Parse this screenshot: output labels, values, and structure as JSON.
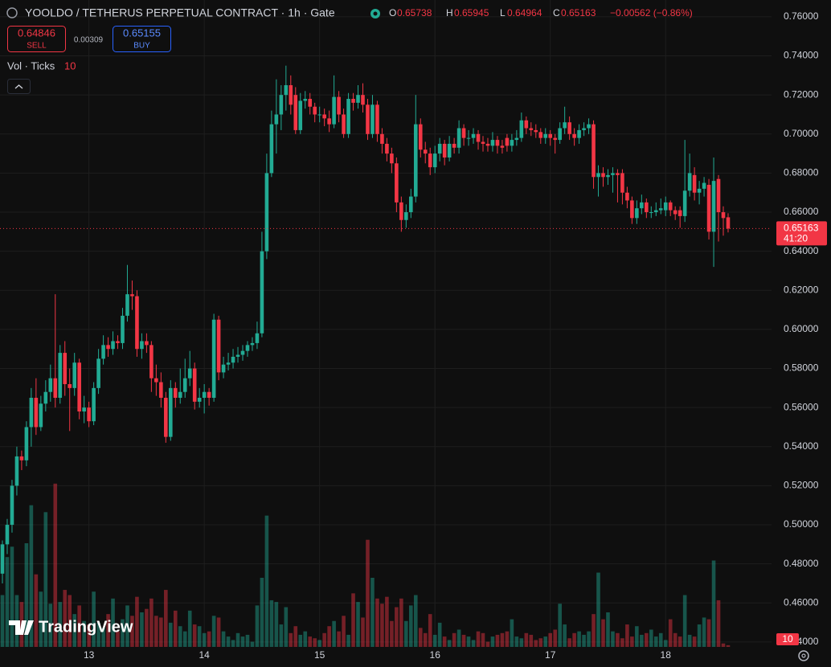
{
  "chart_data": {
    "type": "candlestick",
    "title": "YOOLDO / TETHERUS PERPETUAL CONTRACT · 1h · Gate",
    "ohlc_letters": [
      "O",
      "H",
      "L",
      "C"
    ],
    "change": "−0.00562 (−0.86%)",
    "sell_price": 0.64846,
    "sell_label": "SELL",
    "spread": 0.00309,
    "buy_price": 0.65155,
    "buy_label": "BUY",
    "volume_title": "Vol · Ticks",
    "countdown": "41:20",
    "watermark": "TradingView",
    "up_color": "#22ab94",
    "down_color": "#f23645",
    "grid": true,
    "ylim": [
      0.4375,
      0.7686
    ],
    "yticks": [
      {
        "value": 0.76,
        "label": "0.76000"
      },
      {
        "value": 0.74,
        "label": "0.74000"
      },
      {
        "value": 0.72,
        "label": "0.72000"
      },
      {
        "value": 0.7,
        "label": "0.70000"
      },
      {
        "value": 0.68,
        "label": "0.68000"
      },
      {
        "value": 0.66,
        "label": "0.66000"
      },
      {
        "value": 0.64,
        "label": "0.64000"
      },
      {
        "value": 0.62,
        "label": "0.62000"
      },
      {
        "value": 0.6,
        "label": "0.60000"
      },
      {
        "value": 0.58,
        "label": "0.58000"
      },
      {
        "value": 0.56,
        "label": "0.56000"
      },
      {
        "value": 0.54,
        "label": "0.54000"
      },
      {
        "value": 0.52,
        "label": "0.52000"
      },
      {
        "value": 0.5,
        "label": "0.50000"
      },
      {
        "value": 0.48,
        "label": "0.48000"
      },
      {
        "value": 0.46,
        "label": "0.46000"
      },
      {
        "value": 0.44,
        "label": "0.44000"
      }
    ],
    "xticks": [
      {
        "value": 18,
        "label": "13"
      },
      {
        "value": 42,
        "label": "14"
      },
      {
        "value": 66,
        "label": "15"
      },
      {
        "value": 90,
        "label": "16"
      },
      {
        "value": 114,
        "label": "17"
      },
      {
        "value": 138,
        "label": "18"
      }
    ],
    "vlim": [
      0,
      1000
    ],
    "open": [
      0.475,
      0.49,
      0.5,
      0.52,
      0.535,
      0.533,
      0.55,
      0.565,
      0.55,
      0.562,
      0.568,
      0.575,
      0.565,
      0.588,
      0.572,
      0.57,
      0.583,
      0.558,
      0.56,
      0.553,
      0.57,
      0.585,
      0.592,
      0.59,
      0.594,
      0.593,
      0.607,
      0.618,
      0.617,
      0.59,
      0.594,
      0.592,
      0.575,
      0.573,
      0.565,
      0.545,
      0.57,
      0.565,
      0.568,
      0.575,
      0.58,
      0.563,
      0.565,
      0.568,
      0.565,
      0.605,
      0.578,
      0.582,
      0.583,
      0.586,
      0.587,
      0.589,
      0.592,
      0.593,
      0.598,
      0.64,
      0.68,
      0.705,
      0.71,
      0.72,
      0.725,
      0.72,
      0.702,
      0.717,
      0.718,
      0.714,
      0.71,
      0.71,
      0.708,
      0.705,
      0.719,
      0.71,
      0.7,
      0.718,
      0.716,
      0.72,
      0.715,
      0.7,
      0.715,
      0.7,
      0.695,
      0.69,
      0.685,
      0.665,
      0.656,
      0.66,
      0.668,
      0.705,
      0.692,
      0.69,
      0.683,
      0.69,
      0.695,
      0.688,
      0.695,
      0.693,
      0.703,
      0.698,
      0.698,
      0.7,
      0.696,
      0.695,
      0.694,
      0.697,
      0.694,
      0.698,
      0.694,
      0.697,
      0.698,
      0.707,
      0.703,
      0.702,
      0.701,
      0.698,
      0.7,
      0.698,
      0.697,
      0.703,
      0.706,
      0.7,
      0.698,
      0.702,
      0.703,
      0.705,
      0.678,
      0.68,
      0.678,
      0.679,
      0.68,
      0.68,
      0.67,
      0.666,
      0.657,
      0.662,
      0.665,
      0.66,
      0.66,
      0.661,
      0.661,
      0.665,
      0.661,
      0.661,
      0.658,
      0.671,
      0.679,
      0.67,
      0.672,
      0.674,
      0.65,
      0.677,
      0.66,
      0.65738
    ],
    "high": [
      0.492,
      0.503,
      0.523,
      0.54,
      0.538,
      0.553,
      0.57,
      0.575,
      0.566,
      0.574,
      0.582,
      0.618,
      0.592,
      0.594,
      0.58,
      0.588,
      0.585,
      0.566,
      0.563,
      0.573,
      0.59,
      0.597,
      0.596,
      0.599,
      0.597,
      0.611,
      0.633,
      0.625,
      0.62,
      0.598,
      0.598,
      0.594,
      0.582,
      0.578,
      0.568,
      0.574,
      0.573,
      0.58,
      0.585,
      0.589,
      0.583,
      0.57,
      0.572,
      0.57,
      0.608,
      0.607,
      0.586,
      0.588,
      0.59,
      0.591,
      0.592,
      0.594,
      0.596,
      0.604,
      0.65,
      0.69,
      0.712,
      0.728,
      0.725,
      0.735,
      0.73,
      0.724,
      0.721,
      0.722,
      0.721,
      0.716,
      0.714,
      0.713,
      0.712,
      0.73,
      0.722,
      0.713,
      0.721,
      0.721,
      0.725,
      0.726,
      0.718,
      0.72,
      0.717,
      0.703,
      0.698,
      0.693,
      0.688,
      0.668,
      0.664,
      0.672,
      0.72,
      0.708,
      0.696,
      0.693,
      0.694,
      0.698,
      0.697,
      0.699,
      0.698,
      0.707,
      0.705,
      0.702,
      0.703,
      0.702,
      0.699,
      0.698,
      0.701,
      0.699,
      0.697,
      0.7,
      0.7,
      0.702,
      0.711,
      0.709,
      0.706,
      0.705,
      0.703,
      0.703,
      0.702,
      0.7,
      0.706,
      0.714,
      0.709,
      0.703,
      0.705,
      0.706,
      0.708,
      0.707,
      0.684,
      0.683,
      0.682,
      0.683,
      0.682,
      0.682,
      0.673,
      0.668,
      0.666,
      0.669,
      0.667,
      0.663,
      0.665,
      0.667,
      0.668,
      0.666,
      0.663,
      0.663,
      0.697,
      0.69,
      0.683,
      0.676,
      0.678,
      0.677,
      0.688,
      0.679,
      0.663,
      0.65945
    ],
    "low": [
      0.47,
      0.485,
      0.496,
      0.515,
      0.528,
      0.53,
      0.54,
      0.546,
      0.548,
      0.558,
      0.563,
      0.56,
      0.562,
      0.566,
      0.548,
      0.566,
      0.554,
      0.552,
      0.55,
      0.551,
      0.567,
      0.582,
      0.586,
      0.587,
      0.59,
      0.59,
      0.604,
      0.61,
      0.586,
      0.585,
      0.588,
      0.568,
      0.566,
      0.56,
      0.542,
      0.543,
      0.56,
      0.562,
      0.565,
      0.571,
      0.559,
      0.56,
      0.557,
      0.561,
      0.563,
      0.574,
      0.575,
      0.579,
      0.58,
      0.583,
      0.584,
      0.586,
      0.589,
      0.59,
      0.596,
      0.636,
      0.678,
      0.69,
      0.702,
      0.712,
      0.71,
      0.7,
      0.7,
      0.713,
      0.71,
      0.706,
      0.706,
      0.704,
      0.701,
      0.703,
      0.706,
      0.698,
      0.698,
      0.712,
      0.713,
      0.711,
      0.697,
      0.698,
      0.696,
      0.69,
      0.686,
      0.68,
      0.66,
      0.65,
      0.652,
      0.657,
      0.665,
      0.688,
      0.685,
      0.679,
      0.68,
      0.686,
      0.684,
      0.686,
      0.69,
      0.69,
      0.694,
      0.694,
      0.695,
      0.692,
      0.691,
      0.691,
      0.691,
      0.69,
      0.69,
      0.691,
      0.691,
      0.694,
      0.696,
      0.7,
      0.699,
      0.698,
      0.695,
      0.695,
      0.694,
      0.69,
      0.695,
      0.7,
      0.697,
      0.694,
      0.695,
      0.699,
      0.7,
      0.672,
      0.668,
      0.673,
      0.674,
      0.67,
      0.665,
      0.664,
      0.662,
      0.654,
      0.654,
      0.659,
      0.657,
      0.657,
      0.658,
      0.659,
      0.658,
      0.658,
      0.656,
      0.652,
      0.655,
      0.668,
      0.666,
      0.664,
      0.668,
      0.646,
      0.632,
      0.645,
      0.648,
      0.64964
    ],
    "close": [
      0.49,
      0.5,
      0.52,
      0.535,
      0.533,
      0.55,
      0.565,
      0.55,
      0.562,
      0.568,
      0.575,
      0.565,
      0.588,
      0.572,
      0.57,
      0.583,
      0.558,
      0.56,
      0.553,
      0.57,
      0.585,
      0.592,
      0.59,
      0.594,
      0.593,
      0.607,
      0.618,
      0.617,
      0.59,
      0.594,
      0.592,
      0.575,
      0.573,
      0.565,
      0.545,
      0.57,
      0.565,
      0.568,
      0.575,
      0.58,
      0.563,
      0.565,
      0.568,
      0.565,
      0.605,
      0.578,
      0.582,
      0.583,
      0.586,
      0.587,
      0.589,
      0.592,
      0.593,
      0.598,
      0.64,
      0.68,
      0.705,
      0.71,
      0.72,
      0.725,
      0.715,
      0.702,
      0.717,
      0.718,
      0.714,
      0.71,
      0.71,
      0.708,
      0.705,
      0.719,
      0.71,
      0.7,
      0.718,
      0.716,
      0.72,
      0.715,
      0.7,
      0.715,
      0.7,
      0.695,
      0.69,
      0.685,
      0.665,
      0.656,
      0.66,
      0.668,
      0.705,
      0.692,
      0.69,
      0.683,
      0.69,
      0.695,
      0.688,
      0.695,
      0.693,
      0.703,
      0.698,
      0.698,
      0.7,
      0.696,
      0.695,
      0.694,
      0.697,
      0.694,
      0.693,
      0.694,
      0.697,
      0.698,
      0.707,
      0.703,
      0.702,
      0.701,
      0.698,
      0.7,
      0.698,
      0.697,
      0.703,
      0.706,
      0.7,
      0.698,
      0.702,
      0.703,
      0.705,
      0.678,
      0.68,
      0.678,
      0.679,
      0.68,
      0.679,
      0.67,
      0.666,
      0.657,
      0.662,
      0.665,
      0.66,
      0.66,
      0.661,
      0.662,
      0.665,
      0.661,
      0.659,
      0.658,
      0.671,
      0.68,
      0.67,
      0.672,
      0.675,
      0.65,
      0.676,
      0.66,
      0.657,
      0.65163
    ],
    "volume": [
      300,
      520,
      580,
      300,
      260,
      600,
      820,
      420,
      320,
      780,
      250,
      945,
      260,
      330,
      300,
      190,
      240,
      150,
      130,
      320,
      140,
      110,
      190,
      280,
      90,
      160,
      240,
      180,
      290,
      200,
      220,
      280,
      180,
      170,
      330,
      140,
      210,
      120,
      90,
      210,
      130,
      120,
      80,
      90,
      180,
      170,
      90,
      60,
      40,
      80,
      60,
      70,
      30,
      240,
      400,
      760,
      270,
      260,
      130,
      230,
      80,
      120,
      70,
      90,
      60,
      50,
      40,
      80,
      120,
      150,
      90,
      180,
      70,
      310,
      260,
      170,
      620,
      400,
      280,
      250,
      290,
      150,
      230,
      280,
      150,
      240,
      300,
      110,
      80,
      190,
      70,
      140,
      60,
      40,
      80,
      100,
      70,
      60,
      40,
      90,
      80,
      30,
      60,
      70,
      80,
      90,
      160,
      60,
      50,
      80,
      70,
      40,
      50,
      60,
      80,
      100,
      250,
      130,
      50,
      80,
      90,
      70,
      90,
      190,
      430,
      160,
      200,
      90,
      80,
      50,
      130,
      60,
      120,
      70,
      80,
      100,
      60,
      80,
      40,
      160,
      80,
      60,
      300,
      70,
      60,
      130,
      170,
      160,
      500,
      270,
      20,
      10
    ]
  }
}
